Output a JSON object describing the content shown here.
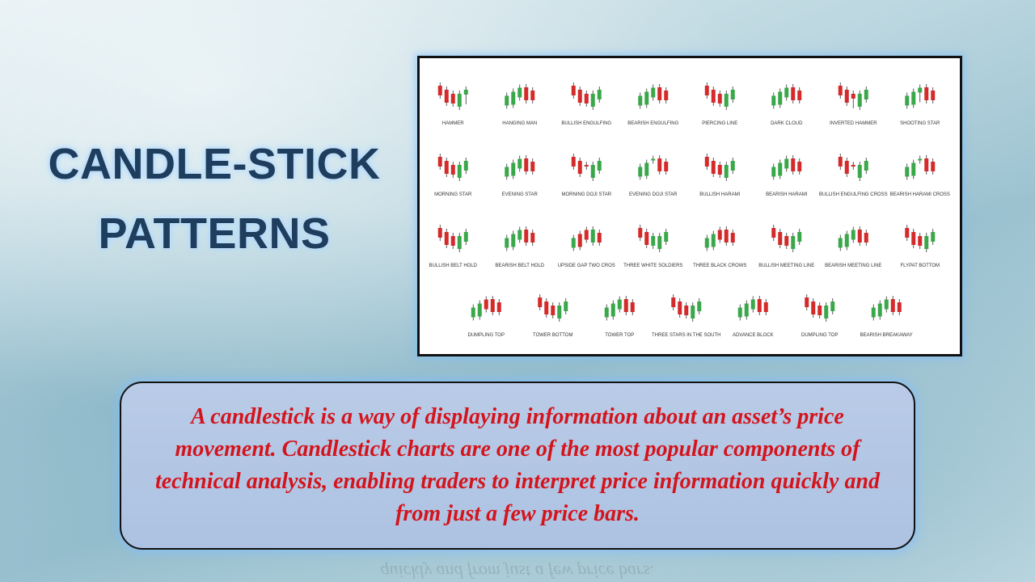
{
  "title": {
    "line1": "CANDLE-STICK",
    "line2": "PATTERNS"
  },
  "description": "A candlestick is a way of displaying information about an asset’s price movement. Candlestick charts are one of the most popular components of technical analysis, enabling traders to interpret price information quickly and from just a few price bars.",
  "reflection_text": "quickly and from just a few price bars.",
  "colors": {
    "bullish": "#3aa84a",
    "bearish": "#d42a2a",
    "title_text": "#1f3d5c",
    "description_text": "#d4141c",
    "box_fill": "#b9cbe7"
  },
  "patterns": [
    {
      "name": "HAMMER",
      "seq": "rrrgx"
    },
    {
      "name": "HANGING MAN",
      "seq": "ggnrr"
    },
    {
      "name": "BULLISH ENGULFING",
      "seq": "rrrgg"
    },
    {
      "name": "BEARISH ENGULFING",
      "seq": "gggrr"
    },
    {
      "name": "PIERCING LINE",
      "seq": "rrrgg"
    },
    {
      "name": "DARK CLOUD",
      "seq": "gggrr"
    },
    {
      "name": "INVERTED HAMMER",
      "seq": "rrxgg"
    },
    {
      "name": "SHOOTING STAR",
      "seq": "ggxrr"
    },
    {
      "name": "MORNING STAR",
      "seq": "rrrgg"
    },
    {
      "name": "EVENING STAR",
      "seq": "gggrr"
    },
    {
      "name": "MORNING DOJI STAR",
      "seq": "rrdgg"
    },
    {
      "name": "EVENING DOJI STAR",
      "seq": "ggdrr"
    },
    {
      "name": "BULLISH HARAMI",
      "seq": "rrrgg"
    },
    {
      "name": "BEARISH HARAMI",
      "seq": "gggrr"
    },
    {
      "name": "BULLISH ENGULFING CROSS",
      "seq": "rrdgg"
    },
    {
      "name": "BEARISH HARAMI CROSS",
      "seq": "ggdrr"
    },
    {
      "name": "BULLISH BELT HOLD",
      "seq": "rrrgg"
    },
    {
      "name": "BEARISH BELT HOLD",
      "seq": "gggrr"
    },
    {
      "name": "UPSIDE GAP TWO CROS",
      "seq": "grrgr"
    },
    {
      "name": "THREE WHITE SOLDIERS",
      "seq": "rrggg"
    },
    {
      "name": "THREE BLACK CROWS",
      "seq": "ggrrr"
    },
    {
      "name": "BULLISH MEETING LINE",
      "seq": "rrrgg"
    },
    {
      "name": "BEARISH MEETING LINE",
      "seq": "gggrr"
    },
    {
      "name": "FLYPAT BOTTOM",
      "seq": "rrrgg"
    },
    {
      "name": "DUMPLING TOP",
      "seq": "ggrrr"
    },
    {
      "name": "TOWER BOTTOM",
      "seq": "rrrgg"
    },
    {
      "name": "TOWER TOP",
      "seq": "gggrr"
    },
    {
      "name": "THREE STARS IN THE SOUTH",
      "seq": "rrrgg"
    },
    {
      "name": "ADVANCE BLOCK",
      "seq": "gggrr"
    },
    {
      "name": "DUMPLING TOP",
      "seq": "rrrgg"
    },
    {
      "name": "BEARISH BREAKAWAY",
      "seq": "gggrr"
    }
  ]
}
